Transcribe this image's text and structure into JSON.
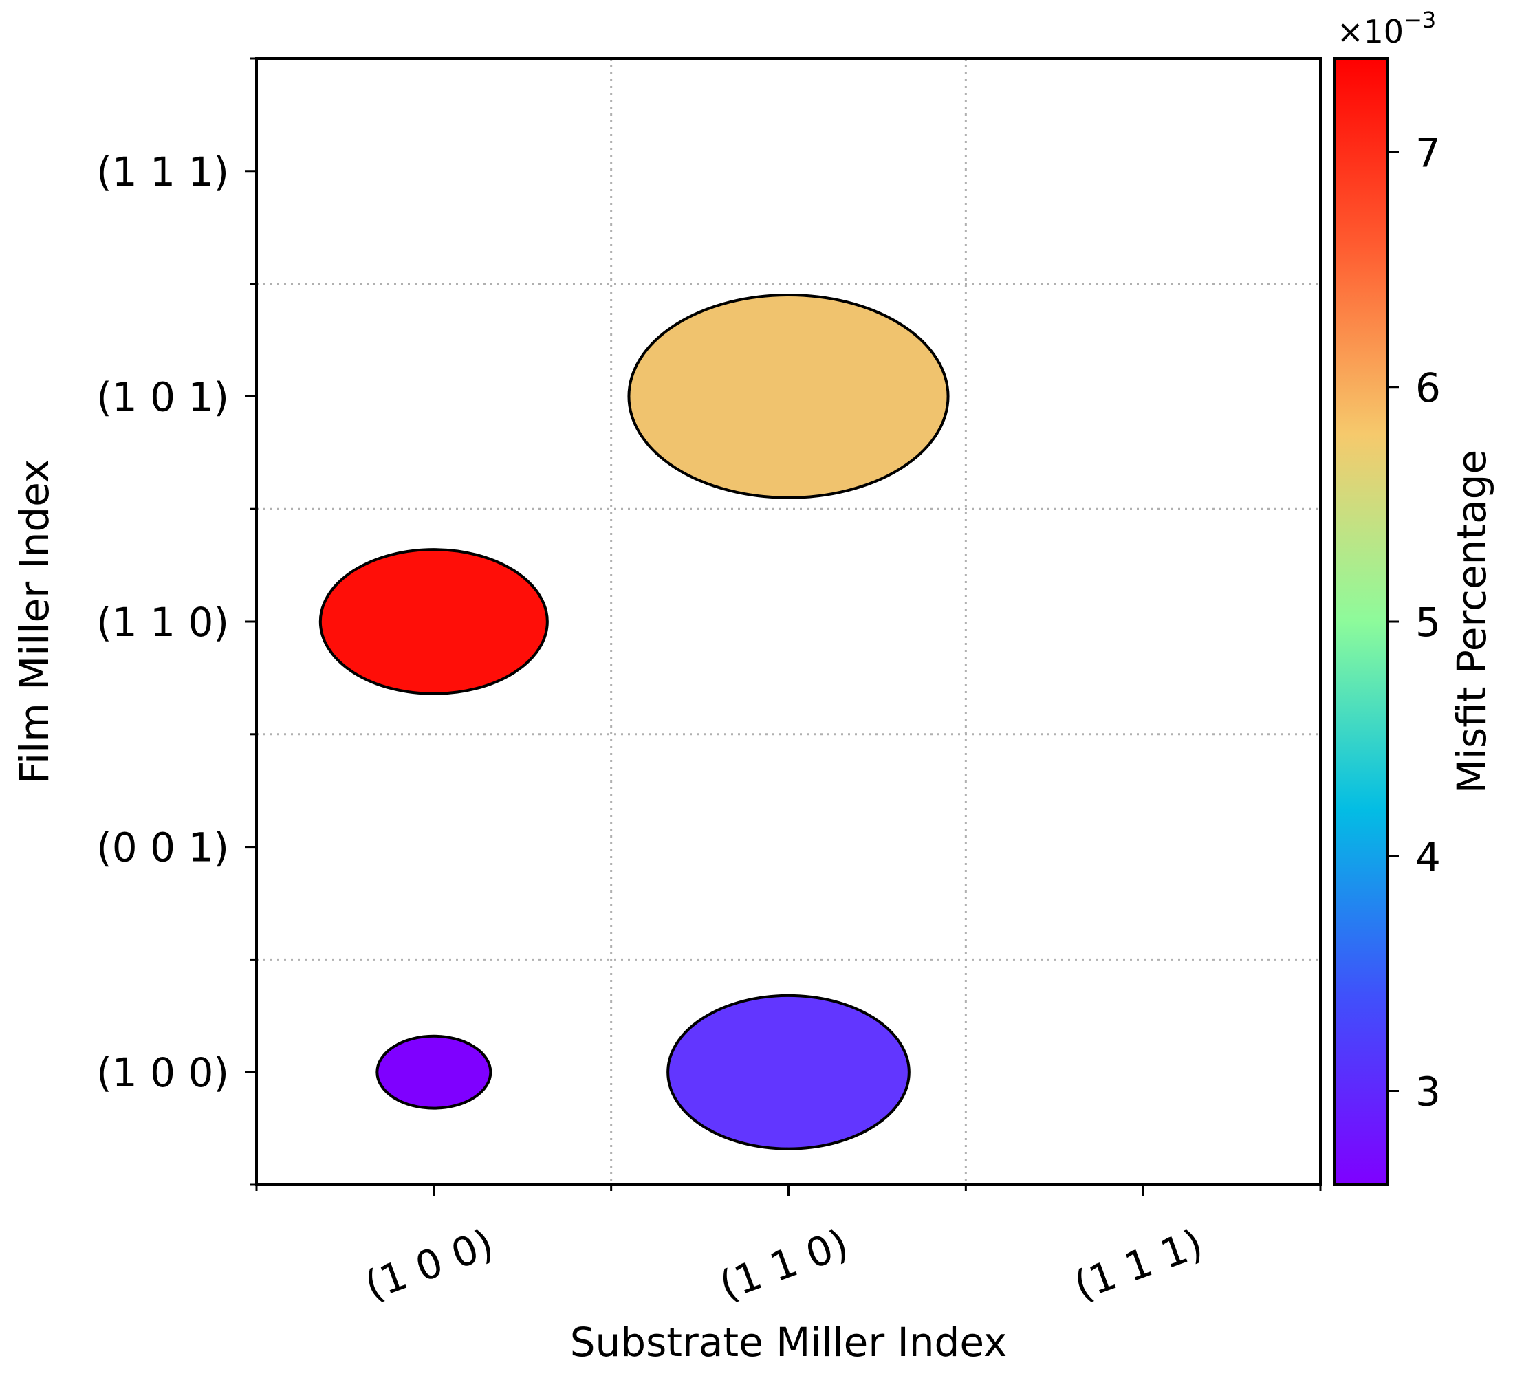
{
  "chart_data": {
    "type": "scatter",
    "xlabel": "Substrate Miller Index",
    "ylabel": "Film Miller Index",
    "x_categories": [
      "(1 0 0)",
      "(1 1 0)",
      "(1 1 1)"
    ],
    "y_categories": [
      "(1 0 0)",
      "(0 0 1)",
      "(1 1 0)",
      "(1 0 1)",
      "(1 1 1)"
    ],
    "grid": true,
    "points": [
      {
        "x": "(1 0 0)",
        "y": "(1 0 0)",
        "misfit": 0.0026,
        "rel_width": 0.32,
        "rel_height": 0.32,
        "color": "#7f00ff"
      },
      {
        "x": "(1 1 0)",
        "y": "(1 0 0)",
        "misfit": 0.0029,
        "rel_width": 0.68,
        "rel_height": 0.68,
        "color": "#6236ff"
      },
      {
        "x": "(1 0 0)",
        "y": "(1 1 0)",
        "misfit": 0.0074,
        "rel_width": 0.64,
        "rel_height": 0.64,
        "color": "#ff0e08"
      },
      {
        "x": "(1 1 0)",
        "y": "(1 0 1)",
        "misfit": 0.0061,
        "rel_width": 0.9,
        "rel_height": 0.9,
        "color": "#f0c36e"
      }
    ],
    "colorbar": {
      "label": "Misfit Percentage",
      "multiplier_label": "×10",
      "multiplier_exponent": "−3",
      "min": 2.6,
      "max": 7.4,
      "ticks": [
        3,
        4,
        5,
        6,
        7
      ],
      "tick_labels": [
        "3",
        "4",
        "5",
        "6",
        "7"
      ],
      "colors": [
        "#7f00ff",
        "#4050fb",
        "#03bde4",
        "#8dfb9b",
        "#f6c96c",
        "#ff5c30",
        "#ff0000"
      ]
    }
  }
}
